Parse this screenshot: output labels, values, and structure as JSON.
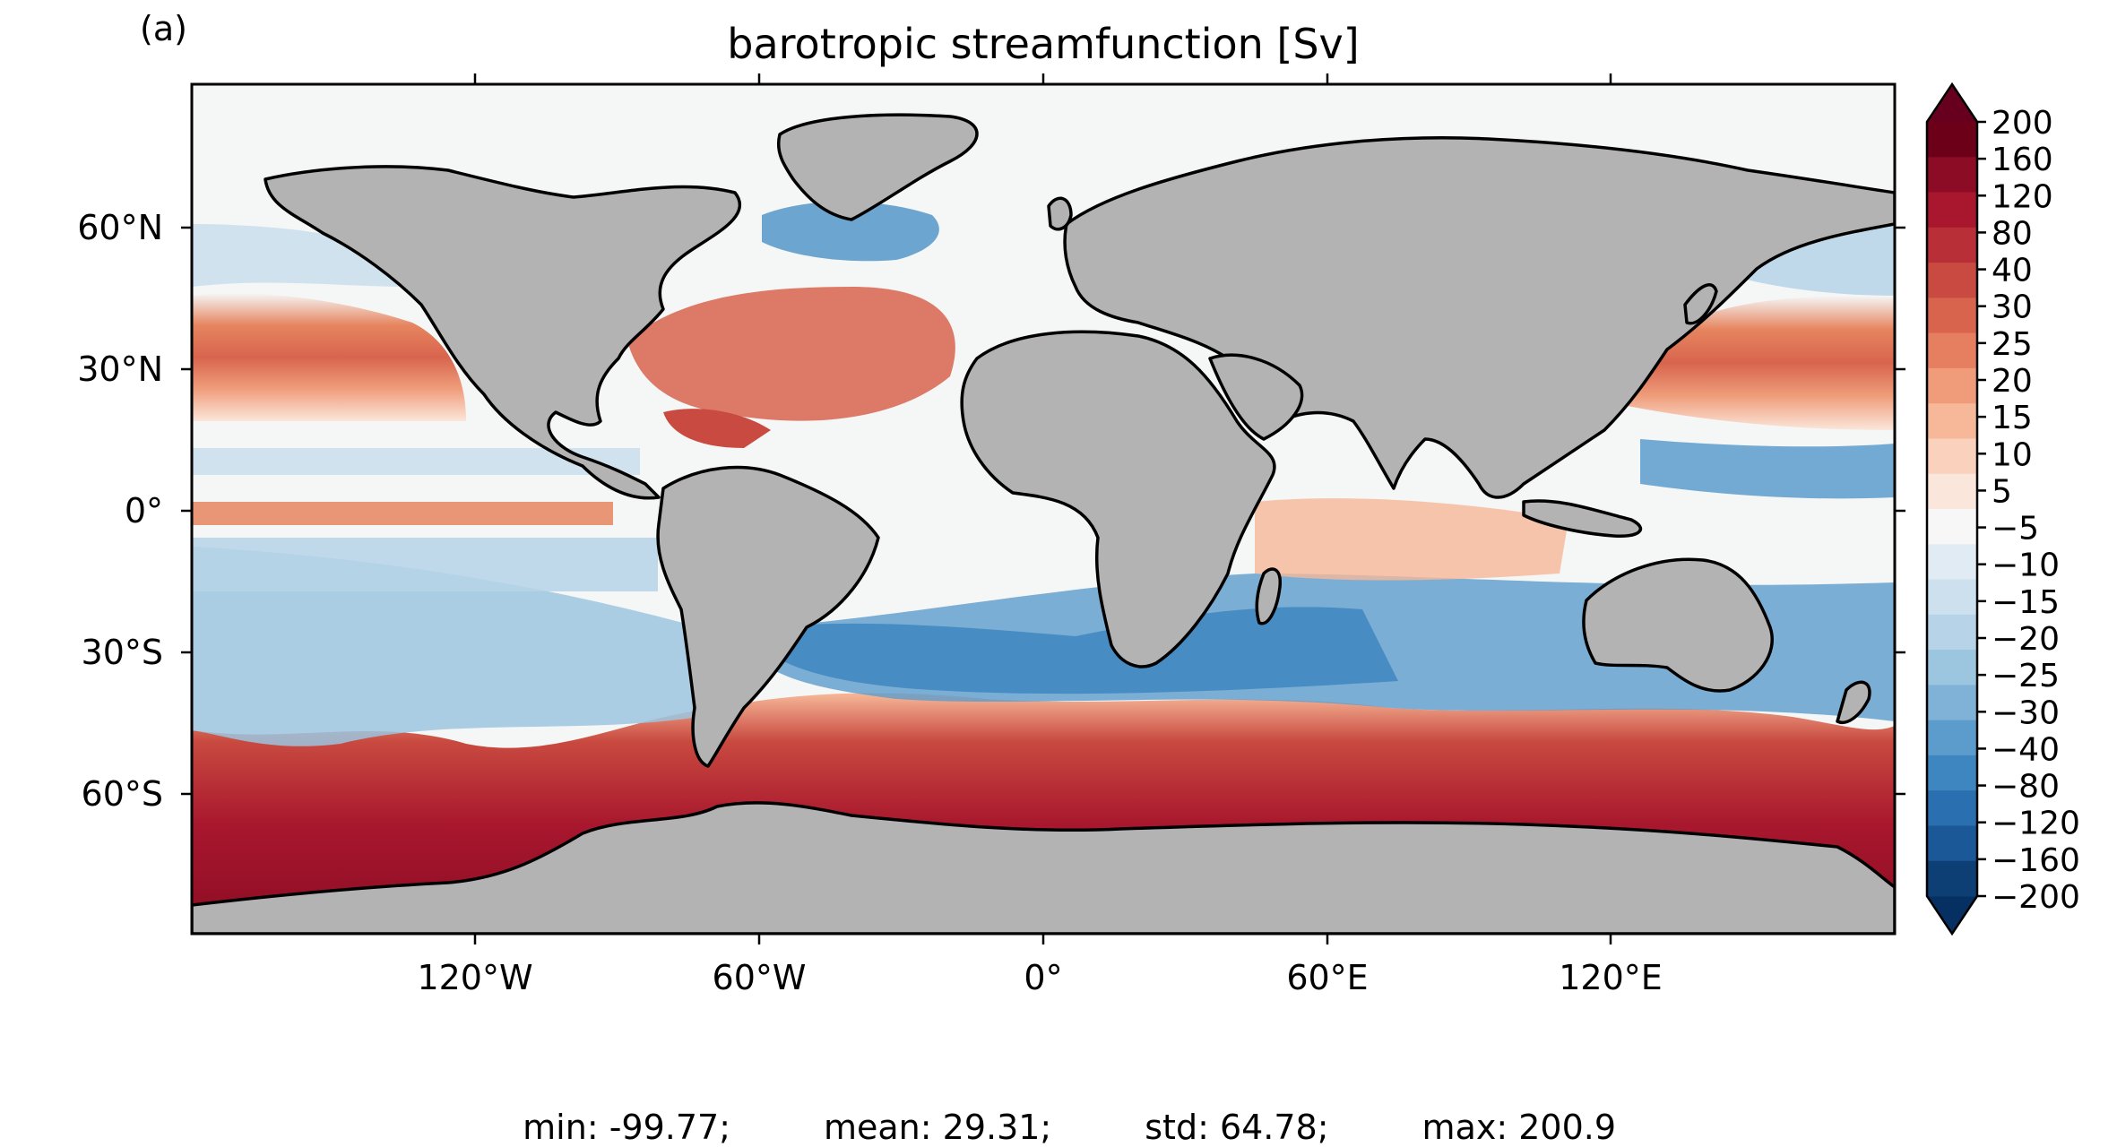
{
  "panel_label": "(a)",
  "title": "barotropic streamfunction [Sv]",
  "map": {
    "lon_ticks": [
      "120°W",
      "60°W",
      "0°",
      "60°E",
      "120°E"
    ],
    "lat_ticks": [
      "60°N",
      "30°N",
      "0°",
      "30°S",
      "60°S"
    ],
    "ocean_background": "#f5f6f6",
    "land_color": "#b3b3b3",
    "coast_color": "#000000"
  },
  "colorbar": {
    "labels": [
      "200",
      "160",
      "120",
      "80",
      "40",
      "30",
      "25",
      "20",
      "15",
      "10",
      "5",
      "−5",
      "−10",
      "−15",
      "−20",
      "−25",
      "−30",
      "−40",
      "−80",
      "−120",
      "−160",
      "−200"
    ],
    "colors": [
      "#6b0018",
      "#8b0c24",
      "#a8172d",
      "#b82f37",
      "#c94a40",
      "#d8644e",
      "#e67f60",
      "#f09b79",
      "#f6b898",
      "#f9d1bc",
      "#fbe6db",
      "#f7f7f7",
      "#e1ebf3",
      "#cde0ee",
      "#b6d3e7",
      "#9cc5df",
      "#7fb2d6",
      "#5c9ccc",
      "#3e86bf",
      "#2a6fb0",
      "#1a5898",
      "#0d3f74"
    ],
    "extend_max_color": "#67001f",
    "extend_min_color": "#053061"
  },
  "stats": {
    "min": "min: -99.77;",
    "mean": "mean: 29.31;",
    "std": "std: 64.78;",
    "max": "max: 200.9"
  }
}
